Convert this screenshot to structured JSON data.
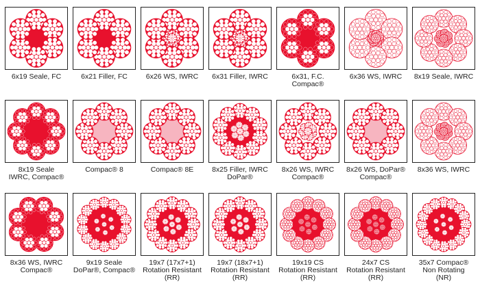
{
  "colors": {
    "red": "#e8112d",
    "pink": "#f7b5c0",
    "white": "#ffffff",
    "border": "#222222"
  },
  "rows": [
    [
      {
        "lines": [
          "6x19 Seale, FC"
        ],
        "icon": "rope-6-strand-fiber-core-icon"
      },
      {
        "lines": [
          "6x21 Filler, FC"
        ],
        "icon": "rope-6-strand-fiber-core-icon"
      },
      {
        "lines": [
          "6x26 WS, IWRC"
        ],
        "icon": "rope-6-strand-iwrc-icon"
      },
      {
        "lines": [
          "6x31 Filler, IWRC"
        ],
        "icon": "rope-6-strand-iwrc-icon"
      },
      {
        "lines": [
          "6x31, F.C.",
          "Compac®"
        ],
        "icon": "rope-6-strand-compacted-icon"
      },
      {
        "lines": [
          "6x36 WS, IWRC"
        ],
        "icon": "rope-6-strand-iwrc-icon"
      },
      {
        "lines": [
          "8x19 Seale, IWRC"
        ],
        "icon": "rope-8-strand-iwrc-icon"
      }
    ],
    [
      {
        "lines": [
          "8x19 Seale",
          "IWRC, Compac®"
        ],
        "icon": "rope-8-strand-compacted-icon"
      },
      {
        "lines": [
          "Compac® 8"
        ],
        "icon": "rope-8-strand-compacted-icon"
      },
      {
        "lines": [
          "Compac® 8E"
        ],
        "icon": "rope-8-strand-compacted-icon"
      },
      {
        "lines": [
          "8x25 Filler, IWRC",
          "DoPar®"
        ],
        "icon": "rope-8-strand-plastic-icon"
      },
      {
        "lines": [
          "8x26 WS, IWRC",
          "Compac®"
        ],
        "icon": "rope-8-strand-compacted-icon"
      },
      {
        "lines": [
          "8x26 WS, DoPar®",
          "Compac®"
        ],
        "icon": "rope-8-strand-compacted-icon"
      },
      {
        "lines": [
          "8x36 WS, IWRC"
        ],
        "icon": "rope-8-strand-iwrc-icon"
      }
    ],
    [
      {
        "lines": [
          "8x36 WS, IWRC",
          "Compac®"
        ],
        "icon": "rope-8-strand-compacted-icon"
      },
      {
        "lines": [
          "9x19 Seale",
          "DoPar®, Compac®"
        ],
        "icon": "rope-9-strand-plastic-icon"
      },
      {
        "lines": [
          "19x7 (17x7+1)",
          "Rotation Resistant",
          "(RR)"
        ],
        "icon": "rope-rotation-resistant-icon"
      },
      {
        "lines": [
          "19x7 (18x7+1)",
          "Rotation Resistant",
          "(RR)"
        ],
        "icon": "rope-rotation-resistant-icon"
      },
      {
        "lines": [
          "19x19 CS",
          "Rotation Resistant",
          "(RR)"
        ],
        "icon": "rope-rotation-resistant-icon"
      },
      {
        "lines": [
          "24x7 CS",
          "Rotation Resistant",
          "(RR)"
        ],
        "icon": "rope-rotation-resistant-icon"
      },
      {
        "lines": [
          "35x7 Compac®",
          "Non Rotating",
          "(NR)"
        ],
        "icon": "rope-non-rotating-icon"
      }
    ]
  ]
}
